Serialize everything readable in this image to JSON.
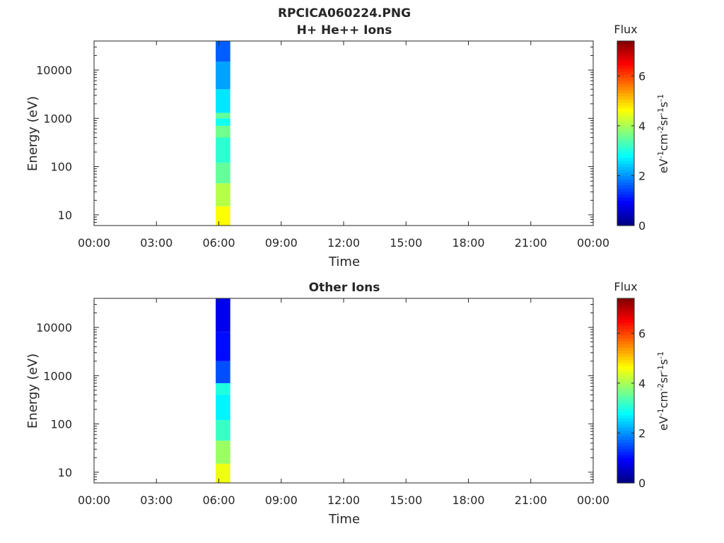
{
  "figure_title": "RPCICA060224.PNG",
  "colors": {
    "axis": "#262626",
    "colormap": [
      "#00007f",
      "#0000ff",
      "#007fff",
      "#00ffff",
      "#7fff7f",
      "#ffff00",
      "#ff7f00",
      "#ff0000",
      "#7f0000"
    ]
  },
  "chart_data": [
    {
      "type": "heatmap",
      "title": "H+ He++ Ions",
      "xlabel": "Time",
      "ylabel": "Energy (eV)",
      "x_ticks": [
        "00:00",
        "03:00",
        "06:00",
        "09:00",
        "12:00",
        "15:00",
        "18:00",
        "21:00",
        "00:00"
      ],
      "x_range_hours": [
        0,
        24
      ],
      "y_scale": "log",
      "y_ticks": [
        10,
        100,
        1000,
        10000
      ],
      "y_tick_labels": [
        "10",
        "100",
        "1000",
        "10000"
      ],
      "y_range": [
        6,
        40000
      ],
      "colorbar": {
        "title": "Flux",
        "label": "eV-1cm-2sr-1s-1",
        "range": [
          0,
          7.4
        ],
        "ticks": [
          0,
          2,
          4,
          6
        ],
        "tick_labels": [
          "0",
          "2",
          "4",
          "6"
        ]
      },
      "data_time_span_hours": [
        5.85,
        6.55
      ],
      "energy_bands": [
        {
          "emin": 6,
          "emax": 15,
          "flux": 4.6
        },
        {
          "emin": 15,
          "emax": 45,
          "flux": 4.1
        },
        {
          "emin": 45,
          "emax": 120,
          "flux": 3.5
        },
        {
          "emin": 120,
          "emax": 400,
          "flux": 3.1
        },
        {
          "emin": 400,
          "emax": 700,
          "flux": 3.6
        },
        {
          "emin": 700,
          "emax": 1000,
          "flux": 2.9
        },
        {
          "emin": 1000,
          "emax": 1300,
          "flux": 3.5
        },
        {
          "emin": 1300,
          "emax": 4000,
          "flux": 2.6
        },
        {
          "emin": 4000,
          "emax": 15000,
          "flux": 2.1
        },
        {
          "emin": 15000,
          "emax": 40000,
          "flux": 1.6
        }
      ]
    },
    {
      "type": "heatmap",
      "title": "Other Ions",
      "xlabel": "Time",
      "ylabel": "Energy (eV)",
      "x_ticks": [
        "00:00",
        "03:00",
        "06:00",
        "09:00",
        "12:00",
        "15:00",
        "18:00",
        "21:00",
        "00:00"
      ],
      "x_range_hours": [
        0,
        24
      ],
      "y_scale": "log",
      "y_ticks": [
        10,
        100,
        1000,
        10000
      ],
      "y_tick_labels": [
        "10",
        "100",
        "1000",
        "10000"
      ],
      "y_range": [
        6,
        40000
      ],
      "colorbar": {
        "title": "Flux",
        "label": "eV-1cm-2sr-1s-1",
        "range": [
          0,
          7.4
        ],
        "ticks": [
          0,
          2,
          4,
          6
        ],
        "tick_labels": [
          "0",
          "2",
          "4",
          "6"
        ]
      },
      "data_time_span_hours": [
        5.85,
        6.55
      ],
      "energy_bands": [
        {
          "emin": 6,
          "emax": 15,
          "flux": 4.5
        },
        {
          "emin": 15,
          "emax": 45,
          "flux": 3.9
        },
        {
          "emin": 45,
          "emax": 120,
          "flux": 3.2
        },
        {
          "emin": 120,
          "emax": 400,
          "flux": 2.7
        },
        {
          "emin": 400,
          "emax": 700,
          "flux": 3.0
        },
        {
          "emin": 700,
          "emax": 2000,
          "flux": 1.5
        },
        {
          "emin": 2000,
          "emax": 8000,
          "flux": 1.0
        },
        {
          "emin": 8000,
          "emax": 40000,
          "flux": 0.8
        }
      ]
    }
  ]
}
